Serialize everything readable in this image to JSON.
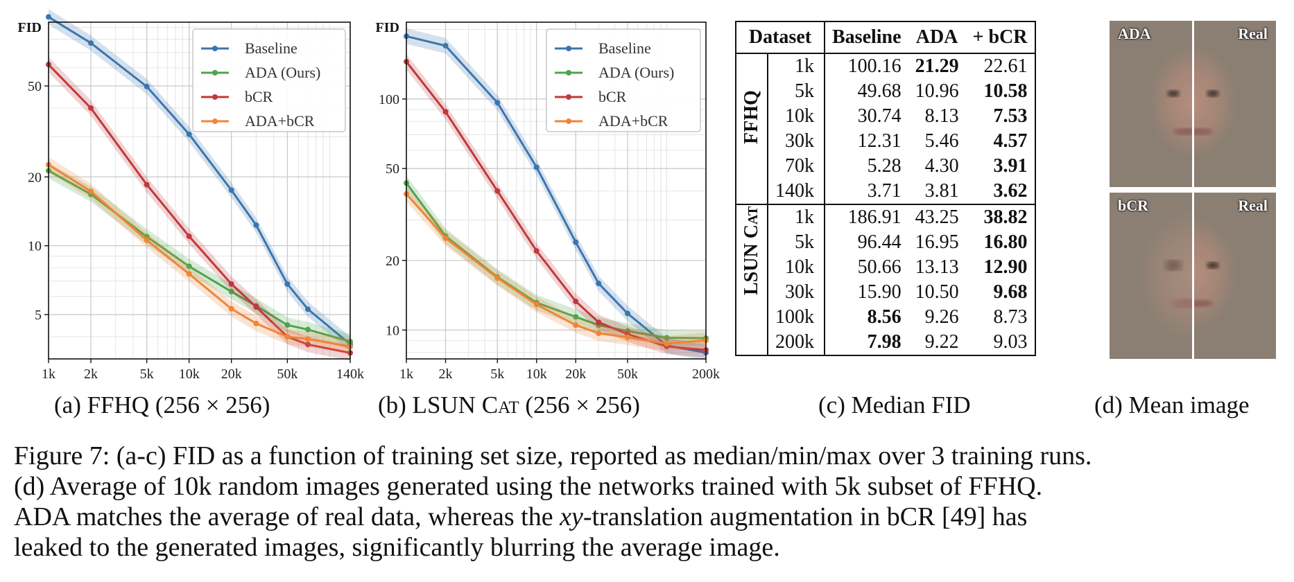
{
  "figure": {
    "number_label": "Figure 7:",
    "caption_line1": "(a-c) FID as a function of training set size, reported as median/min/max over 3 training runs.",
    "caption_line2": "(d) Average of 10k random images generated using the networks trained with 5k subset of FFHQ.",
    "caption_line3_a": "ADA matches the average of real data, whereas the",
    "caption_line3_math": "xy",
    "caption_line3_b": "-translation augmentation in bCR [49] has",
    "caption_line4": "leaked to the generated images, significantly blurring the average image."
  },
  "subcaptions": {
    "a": "(a) FFHQ (256 × 256)",
    "b_prefix": "(b) LSUN",
    "b_smallcaps": "Cat",
    "b_suffix": "(256 × 256)",
    "c": "(c) Median FID",
    "d": "(d) Mean image"
  },
  "chart_data": [
    {
      "type": "line",
      "panel": "a",
      "ylabel": "FID",
      "x": [
        1,
        2,
        5,
        10,
        20,
        30,
        50,
        70,
        140
      ],
      "x_ticks": [
        "1k",
        "2k",
        "5k",
        "10k",
        "20k",
        "50k",
        "140k"
      ],
      "x_tick_values": [
        1,
        2,
        5,
        10,
        20,
        50,
        140
      ],
      "y_ticks": [
        "5",
        "10",
        "20",
        "50"
      ],
      "y_tick_values": [
        5,
        10,
        20,
        50
      ],
      "xlim": [
        1,
        140
      ],
      "ylim": [
        3.2,
        95
      ],
      "xscale": "log",
      "yscale": "log",
      "legend_position": "top-right",
      "series": [
        {
          "name": "Baseline",
          "color": "#3b75af",
          "x": [
            1,
            2,
            5,
            10,
            20,
            30,
            50,
            70,
            140
          ],
          "values": [
            100.16,
            77,
            49.68,
            30.74,
            17.5,
            12.31,
            6.8,
            5.28,
            3.71
          ]
        },
        {
          "name": "ADA (Ours)",
          "color": "#4ca54c",
          "x": [
            1,
            2,
            5,
            10,
            20,
            30,
            50,
            70,
            140
          ],
          "values": [
            21.29,
            16.8,
            10.96,
            8.13,
            6.3,
            5.46,
            4.5,
            4.3,
            3.81
          ]
        },
        {
          "name": "bCR",
          "color": "#c0393b",
          "x": [
            1,
            2,
            5,
            10,
            20,
            30,
            50,
            70,
            140
          ],
          "values": [
            62,
            40,
            18.5,
            11,
            6.8,
            5.4,
            4.0,
            3.7,
            3.4
          ]
        },
        {
          "name": "ADA+bCR",
          "color": "#ef8536",
          "x": [
            1,
            2,
            5,
            10,
            20,
            30,
            50,
            70,
            140
          ],
          "values": [
            22.61,
            17.3,
            10.58,
            7.53,
            5.3,
            4.57,
            4.0,
            3.91,
            3.62
          ]
        }
      ]
    },
    {
      "type": "line",
      "panel": "b",
      "ylabel": "FID",
      "x": [
        1,
        2,
        5,
        10,
        20,
        30,
        50,
        100,
        200
      ],
      "x_ticks": [
        "1k",
        "2k",
        "5k",
        "10k",
        "20k",
        "50k",
        "200k"
      ],
      "x_tick_values": [
        1,
        2,
        5,
        10,
        20,
        50,
        200
      ],
      "y_ticks": [
        "10",
        "20",
        "50",
        "100"
      ],
      "y_tick_values": [
        10,
        20,
        50,
        100
      ],
      "xlim": [
        1,
        200
      ],
      "ylim": [
        7.5,
        215
      ],
      "xscale": "log",
      "yscale": "log",
      "legend_position": "top-right",
      "series": [
        {
          "name": "Baseline",
          "color": "#3b75af",
          "x": [
            1,
            2,
            5,
            10,
            20,
            30,
            50,
            100,
            200
          ],
          "values": [
            186.91,
            170,
            96.44,
            50.66,
            24,
            15.9,
            11.8,
            8.56,
            7.98
          ]
        },
        {
          "name": "ADA (Ours)",
          "color": "#4ca54c",
          "x": [
            1,
            2,
            5,
            10,
            20,
            30,
            50,
            100,
            200
          ],
          "values": [
            43.25,
            25.5,
            16.95,
            13.13,
            11.4,
            10.5,
            9.9,
            9.26,
            9.22
          ]
        },
        {
          "name": "bCR",
          "color": "#c0393b",
          "x": [
            1,
            2,
            5,
            10,
            20,
            30,
            50,
            100,
            200
          ],
          "values": [
            145,
            88,
            40,
            22,
            13.3,
            10.8,
            9.6,
            8.5,
            8.2
          ]
        },
        {
          "name": "ADA+bCR",
          "color": "#ef8536",
          "x": [
            1,
            2,
            5,
            10,
            20,
            30,
            50,
            100,
            200
          ],
          "values": [
            38.82,
            25,
            16.8,
            12.9,
            10.5,
            9.68,
            9.3,
            8.73,
            9.03
          ]
        }
      ]
    }
  ],
  "table": {
    "headers": [
      "Dataset",
      "Baseline",
      "ADA",
      "+ bCR"
    ],
    "groups": [
      {
        "name": "FFHQ",
        "rows": [
          {
            "size": "1k",
            "baseline": "100.16",
            "ada": "21.29",
            "bcr": "22.61",
            "bold": "ada"
          },
          {
            "size": "5k",
            "baseline": "49.68",
            "ada": "10.96",
            "bcr": "10.58",
            "bold": "bcr"
          },
          {
            "size": "10k",
            "baseline": "30.74",
            "ada": "8.13",
            "bcr": "7.53",
            "bold": "bcr"
          },
          {
            "size": "30k",
            "baseline": "12.31",
            "ada": "5.46",
            "bcr": "4.57",
            "bold": "bcr"
          },
          {
            "size": "70k",
            "baseline": "5.28",
            "ada": "4.30",
            "bcr": "3.91",
            "bold": "bcr"
          },
          {
            "size": "140k",
            "baseline": "3.71",
            "ada": "3.81",
            "bcr": "3.62",
            "bold": "bcr"
          }
        ]
      },
      {
        "name": "LSUN Cat",
        "rows": [
          {
            "size": "1k",
            "baseline": "186.91",
            "ada": "43.25",
            "bcr": "38.82",
            "bold": "bcr"
          },
          {
            "size": "5k",
            "baseline": "96.44",
            "ada": "16.95",
            "bcr": "16.80",
            "bold": "bcr"
          },
          {
            "size": "10k",
            "baseline": "50.66",
            "ada": "13.13",
            "bcr": "12.90",
            "bold": "bcr"
          },
          {
            "size": "30k",
            "baseline": "15.90",
            "ada": "10.50",
            "bcr": "9.68",
            "bold": "bcr"
          },
          {
            "size": "100k",
            "baseline": "8.56",
            "ada": "9.26",
            "bcr": "8.73",
            "bold": "baseline"
          },
          {
            "size": "200k",
            "baseline": "7.98",
            "ada": "9.22",
            "bcr": "9.03",
            "bold": "baseline"
          }
        ]
      }
    ]
  },
  "mean_images": {
    "top": {
      "left_label": "ADA",
      "right_label": "Real"
    },
    "bottom": {
      "left_label": "bCR",
      "right_label": "Real"
    }
  },
  "colors": {
    "baseline": "#3b75af",
    "ada": "#4ca54c",
    "bcr": "#c0393b",
    "ada_bcr": "#ef8536",
    "face_bg": "#8a7f72"
  }
}
